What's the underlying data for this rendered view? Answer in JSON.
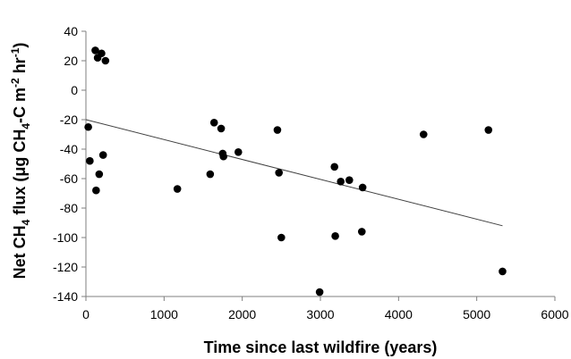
{
  "chart_data": {
    "type": "scatter",
    "xlabel": "Time since last wildfire (years)",
    "ylabel": {
      "prefix": "Net CH",
      "sub": "4",
      "after": " flux   (μg CH",
      "sub2": "4",
      "after2": "-C m",
      "sup": "-2",
      "after3": " hr",
      "sup2": "-1",
      "after4": ")"
    },
    "xlim": [
      0,
      6000
    ],
    "ylim": [
      -140,
      40
    ],
    "xticks": [
      "0",
      "1000",
      "2000",
      "3000",
      "4000",
      "5000",
      "6000"
    ],
    "yticks": [
      "40",
      "20",
      "0",
      "-20",
      "-40",
      "-60",
      "-80",
      "-100",
      "-120",
      "-140"
    ],
    "grid": false,
    "legend": "none",
    "points": [
      {
        "x": 30,
        "y": -25
      },
      {
        "x": 50,
        "y": -48
      },
      {
        "x": 120,
        "y": 27
      },
      {
        "x": 150,
        "y": 22
      },
      {
        "x": 130,
        "y": -68
      },
      {
        "x": 170,
        "y": -57
      },
      {
        "x": 200,
        "y": 25
      },
      {
        "x": 220,
        "y": -44
      },
      {
        "x": 250,
        "y": 20
      },
      {
        "x": 1170,
        "y": -67
      },
      {
        "x": 1590,
        "y": -57
      },
      {
        "x": 1640,
        "y": -22
      },
      {
        "x": 1730,
        "y": -26
      },
      {
        "x": 1750,
        "y": -43
      },
      {
        "x": 1760,
        "y": -45
      },
      {
        "x": 1950,
        "y": -42
      },
      {
        "x": 2450,
        "y": -27
      },
      {
        "x": 2470,
        "y": -56
      },
      {
        "x": 2500,
        "y": -100
      },
      {
        "x": 2990,
        "y": -137
      },
      {
        "x": 3180,
        "y": -52
      },
      {
        "x": 3190,
        "y": -99
      },
      {
        "x": 3260,
        "y": -62
      },
      {
        "x": 3370,
        "y": -61
      },
      {
        "x": 3530,
        "y": -96
      },
      {
        "x": 3540,
        "y": -66
      },
      {
        "x": 4320,
        "y": -30
      },
      {
        "x": 5150,
        "y": -27
      },
      {
        "x": 5330,
        "y": -123
      }
    ],
    "trendline": {
      "x": [
        0,
        5330
      ],
      "y": [
        -20,
        -92
      ]
    },
    "colors": {
      "points": "#000000",
      "trendline": "#404040",
      "axes": "#7f7f7f"
    }
  }
}
